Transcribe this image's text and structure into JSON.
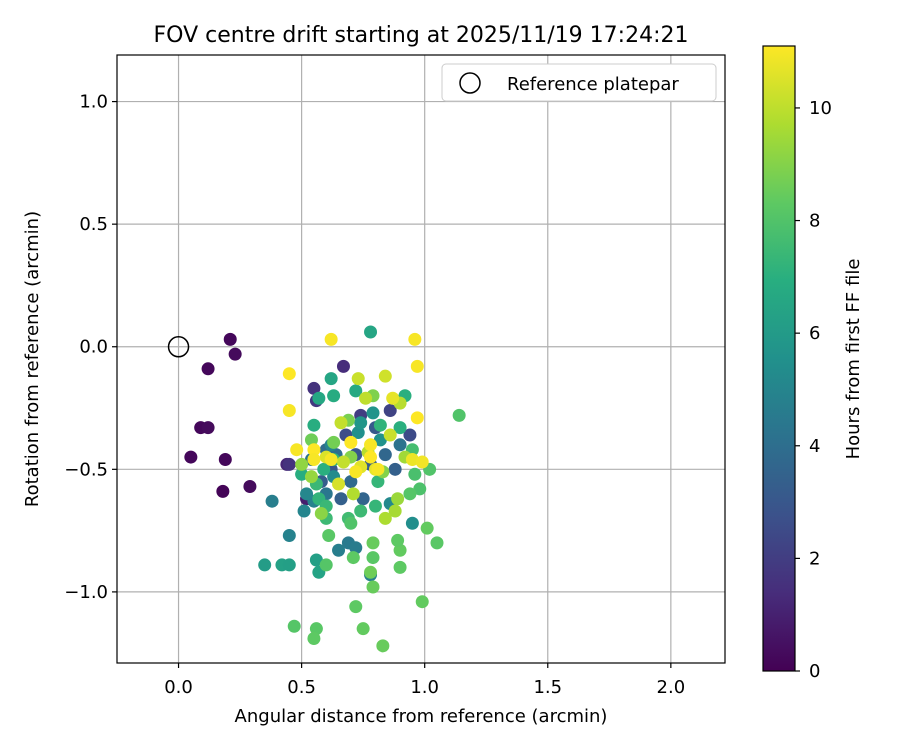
{
  "chart_data": {
    "type": "scatter",
    "title": "FOV centre drift starting at 2025/11/19 17:24:21",
    "xlabel": "Angular distance from reference (arcmin)",
    "ylabel": "Rotation from reference (arcmin)",
    "xlim": [
      -0.25,
      2.22
    ],
    "ylim": [
      -1.29,
      1.19
    ],
    "xticks": [
      0.0,
      0.5,
      1.0,
      1.5,
      2.0
    ],
    "xtick_labels": [
      "0.0",
      "0.5",
      "1.0",
      "1.5",
      "2.0"
    ],
    "yticks": [
      1.0,
      0.5,
      0.0,
      -0.5,
      -1.0
    ],
    "ytick_labels": [
      "1.0",
      "0.5",
      "0.0",
      "−0.5",
      "−1.0"
    ],
    "grid": true,
    "legend": {
      "position": "top-right",
      "label": "Reference platepar"
    },
    "reference_point": {
      "x": 0.0,
      "y": 0.0
    },
    "colorbar": {
      "label": "Hours from first FF file",
      "colormap": "viridis",
      "range": [
        0,
        11.1
      ],
      "ticks": [
        0,
        2,
        4,
        6,
        8,
        10
      ],
      "tick_labels": [
        "0",
        "2",
        "4",
        "6",
        "8",
        "10"
      ]
    },
    "points_columns": [
      "x",
      "y",
      "hours"
    ],
    "points": [
      [
        0.21,
        0.03,
        0.2
      ],
      [
        0.23,
        -0.03,
        0.3
      ],
      [
        0.12,
        -0.09,
        0.2
      ],
      [
        0.09,
        -0.33,
        0.2
      ],
      [
        0.12,
        -0.33,
        0.3
      ],
      [
        0.05,
        -0.45,
        0.2
      ],
      [
        0.19,
        -0.46,
        0.2
      ],
      [
        0.18,
        -0.59,
        0.1
      ],
      [
        0.29,
        -0.57,
        0.3
      ],
      [
        0.67,
        -0.08,
        1.4
      ],
      [
        0.55,
        -0.17,
        1.6
      ],
      [
        0.56,
        -0.22,
        1.8
      ],
      [
        0.44,
        -0.48,
        1.2
      ],
      [
        0.45,
        -0.48,
        1.6
      ],
      [
        0.52,
        -0.62,
        0.9
      ],
      [
        0.74,
        -0.28,
        2.0
      ],
      [
        0.86,
        -0.26,
        2.2
      ],
      [
        0.94,
        -0.36,
        2.5
      ],
      [
        0.68,
        -0.36,
        2.6
      ],
      [
        0.62,
        -0.5,
        2.9
      ],
      [
        0.72,
        -0.44,
        3.0
      ],
      [
        0.78,
        -0.48,
        3.2
      ],
      [
        0.58,
        -0.55,
        3.3
      ],
      [
        0.66,
        -0.62,
        3.4
      ],
      [
        0.75,
        -0.62,
        3.6
      ],
      [
        0.84,
        -0.44,
        3.7
      ],
      [
        0.88,
        -0.5,
        3.4
      ],
      [
        0.7,
        -0.55,
        3.8
      ],
      [
        0.8,
        -0.33,
        3.1
      ],
      [
        0.6,
        -0.42,
        3.9
      ],
      [
        0.64,
        -0.44,
        4.0
      ],
      [
        0.9,
        -0.4,
        4.2
      ],
      [
        0.54,
        -0.46,
        4.2
      ],
      [
        0.6,
        -0.6,
        4.4
      ],
      [
        0.69,
        -0.8,
        4.5
      ],
      [
        0.72,
        -0.82,
        4.6
      ],
      [
        0.65,
        -0.83,
        4.7
      ],
      [
        0.78,
        -0.93,
        4.8
      ],
      [
        0.55,
        -0.63,
        4.9
      ],
      [
        0.51,
        -0.67,
        5.0
      ],
      [
        0.52,
        -0.6,
        5.1
      ],
      [
        0.38,
        -0.63,
        4.7
      ],
      [
        0.45,
        -0.77,
        4.9
      ],
      [
        0.62,
        -0.4,
        5.0
      ],
      [
        0.86,
        -0.64,
        5.2
      ],
      [
        0.95,
        -0.72,
        5.4
      ],
      [
        0.63,
        -0.53,
        5.3
      ],
      [
        0.73,
        -0.35,
        5.5
      ],
      [
        0.82,
        -0.38,
        5.6
      ],
      [
        0.79,
        -0.27,
        5.7
      ],
      [
        0.74,
        -0.31,
        5.8
      ],
      [
        0.35,
        -0.89,
        6.1
      ],
      [
        0.42,
        -0.89,
        6.3
      ],
      [
        0.45,
        -0.89,
        6.2
      ],
      [
        0.56,
        -0.87,
        6.2
      ],
      [
        0.57,
        -0.92,
        6.4
      ],
      [
        0.78,
        0.06,
        6.5
      ],
      [
        0.62,
        -0.13,
        6.5
      ],
      [
        0.72,
        -0.18,
        6.7
      ],
      [
        0.63,
        -0.2,
        6.8
      ],
      [
        0.57,
        -0.21,
        6.6
      ],
      [
        0.92,
        -0.2,
        7.0
      ],
      [
        0.55,
        -0.32,
        6.9
      ],
      [
        0.82,
        -0.32,
        7.2
      ],
      [
        0.9,
        -0.33,
        7.0
      ],
      [
        0.63,
        -0.46,
        7.1
      ],
      [
        0.59,
        -0.5,
        7.0
      ],
      [
        0.5,
        -0.52,
        6.9
      ],
      [
        0.81,
        -0.55,
        7.3
      ],
      [
        0.57,
        -0.62,
        7.2
      ],
      [
        0.6,
        -0.65,
        7.4
      ],
      [
        0.8,
        -0.65,
        7.3
      ],
      [
        0.74,
        -0.67,
        7.5
      ],
      [
        0.69,
        -0.7,
        7.6
      ],
      [
        0.6,
        -0.7,
        7.5
      ],
      [
        0.56,
        -0.56,
        7.4
      ],
      [
        0.95,
        -0.42,
        7.7
      ],
      [
        0.96,
        -0.52,
        7.8
      ],
      [
        0.98,
        -0.58,
        7.9
      ],
      [
        1.14,
        -0.28,
        8.0
      ],
      [
        1.02,
        -0.5,
        8.0
      ],
      [
        0.94,
        -0.6,
        8.1
      ],
      [
        0.7,
        -0.72,
        8.0
      ],
      [
        0.61,
        -0.77,
        8.2
      ],
      [
        0.6,
        -0.89,
        8.1
      ],
      [
        0.71,
        -0.86,
        8.3
      ],
      [
        0.79,
        -0.86,
        8.2
      ],
      [
        0.9,
        -0.83,
        8.4
      ],
      [
        0.89,
        -0.79,
        8.3
      ],
      [
        0.79,
        -0.8,
        8.5
      ],
      [
        1.01,
        -0.74,
        8.4
      ],
      [
        1.05,
        -0.8,
        8.2
      ],
      [
        0.9,
        -0.9,
        8.3
      ],
      [
        0.78,
        -0.92,
        8.6
      ],
      [
        0.79,
        -0.98,
        8.5
      ],
      [
        0.72,
        -1.06,
        8.3
      ],
      [
        0.99,
        -1.04,
        8.4
      ],
      [
        0.47,
        -1.14,
        8.1
      ],
      [
        0.56,
        -1.15,
        8.2
      ],
      [
        0.55,
        -1.19,
        8.3
      ],
      [
        0.75,
        -1.15,
        8.4
      ],
      [
        0.83,
        -1.22,
        8.5
      ],
      [
        0.54,
        -0.38,
        8.6
      ],
      [
        0.63,
        -0.39,
        8.7
      ],
      [
        0.69,
        -0.3,
        8.8
      ],
      [
        0.79,
        -0.2,
        8.9
      ],
      [
        0.7,
        -0.45,
        9.0
      ],
      [
        0.83,
        -0.51,
        9.0
      ],
      [
        0.58,
        -0.68,
        9.1
      ],
      [
        0.5,
        -0.48,
        9.2
      ],
      [
        0.54,
        -0.53,
        9.3
      ],
      [
        0.89,
        -0.62,
        9.4
      ],
      [
        0.92,
        -0.45,
        9.5
      ],
      [
        0.88,
        -0.67,
        9.6
      ],
      [
        0.84,
        -0.7,
        9.7
      ],
      [
        0.71,
        -0.6,
        9.8
      ],
      [
        0.77,
        -0.43,
        9.9
      ],
      [
        0.9,
        -0.23,
        9.9
      ],
      [
        0.76,
        -0.21,
        10.0
      ],
      [
        0.66,
        -0.31,
        10.1
      ],
      [
        0.86,
        -0.36,
        10.2
      ],
      [
        0.84,
        -0.12,
        10.3
      ],
      [
        0.73,
        -0.13,
        10.2
      ],
      [
        0.67,
        -0.47,
        10.1
      ],
      [
        0.65,
        -0.56,
        10.4
      ],
      [
        0.6,
        -0.45,
        10.5
      ],
      [
        0.74,
        -0.49,
        10.6
      ],
      [
        0.87,
        -0.21,
        10.7
      ],
      [
        0.8,
        -0.5,
        10.7
      ],
      [
        0.95,
        -0.46,
        10.8
      ],
      [
        0.99,
        -0.47,
        10.9
      ],
      [
        0.62,
        0.03,
        11.0
      ],
      [
        0.96,
        0.03,
        11.0
      ],
      [
        0.97,
        -0.08,
        11.0
      ],
      [
        0.45,
        -0.11,
        11.1
      ],
      [
        0.45,
        -0.26,
        11.0
      ],
      [
        0.48,
        -0.42,
        11.0
      ],
      [
        0.55,
        -0.42,
        11.1
      ],
      [
        0.55,
        -0.46,
        11.0
      ],
      [
        0.62,
        -0.46,
        11.0
      ],
      [
        0.72,
        -0.51,
        11.0
      ],
      [
        0.7,
        -0.39,
        11.1
      ],
      [
        0.78,
        -0.4,
        11.0
      ],
      [
        0.78,
        -0.45,
        11.1
      ],
      [
        0.81,
        -0.5,
        11.0
      ],
      [
        0.97,
        -0.29,
        11.1
      ]
    ]
  }
}
